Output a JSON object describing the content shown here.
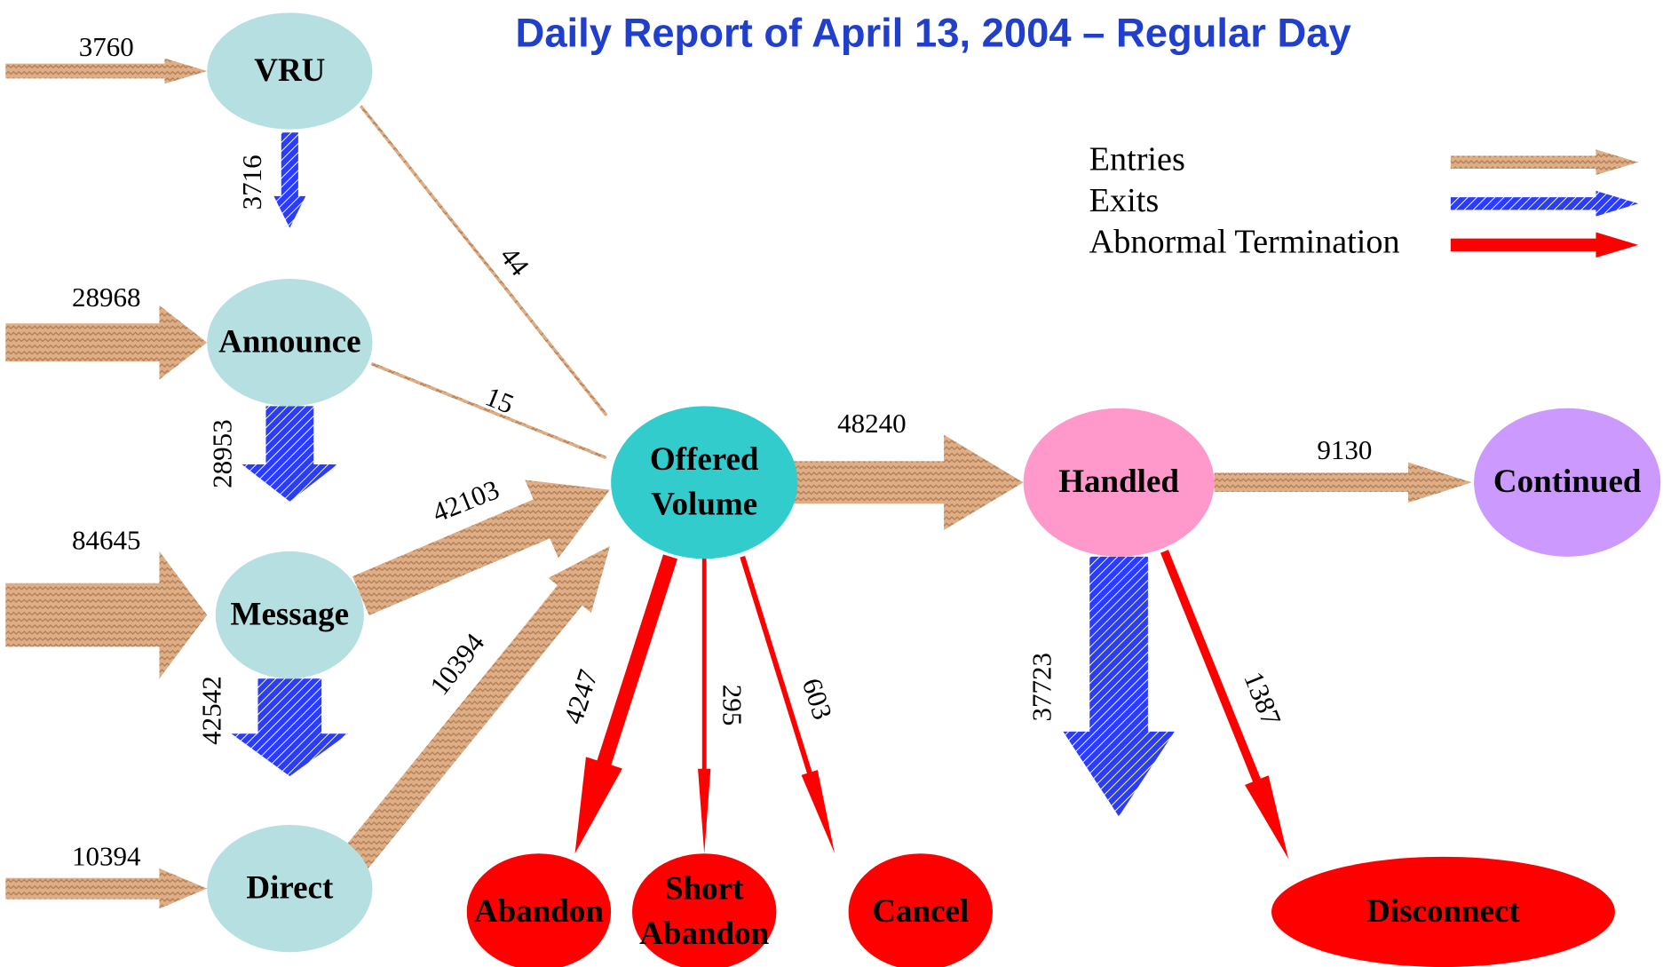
{
  "title": "Daily Report of April 13,  2004 – Regular Day",
  "legend": [
    "Entries",
    "Exits",
    "Abnormal Termination"
  ],
  "nodes": [
    {
      "lines": [
        "VRU"
      ]
    },
    {
      "lines": [
        "Announce"
      ]
    },
    {
      "lines": [
        "Message"
      ]
    },
    {
      "lines": [
        "Direct"
      ]
    },
    {
      "lines": [
        "Offered",
        "Volume"
      ]
    },
    {
      "lines": [
        "Handled"
      ]
    },
    {
      "lines": [
        "Continued"
      ]
    },
    {
      "lines": [
        "Abandon"
      ]
    },
    {
      "lines": [
        "Short",
        "Abandon"
      ]
    },
    {
      "lines": [
        "Cancel"
      ]
    },
    {
      "lines": [
        "Disconnect"
      ]
    }
  ],
  "flows": [
    3760,
    28968,
    84645,
    10394,
    44,
    15,
    42103,
    10394,
    48240,
    9130,
    3716,
    28953,
    42542,
    37723,
    4247,
    295,
    603,
    1387
  ]
}
